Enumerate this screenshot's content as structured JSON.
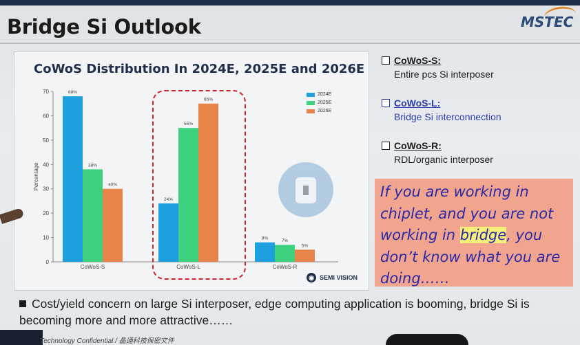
{
  "slide": {
    "title": "Bridge Si Outlook",
    "logo_text": "MSTEC",
    "footer": "Technology Confidential / 晶通科技保密文件",
    "bullet": "Cost/yield concern on large Si interposer, edge computing application is booming, bridge Si is becoming more and more attractive……"
  },
  "options": [
    {
      "label": "CoWoS-S:",
      "description": "Entire pcs Si interposer",
      "color": "#1b1b1b"
    },
    {
      "label": "CoWoS-L:",
      "description": "Bridge Si interconnection",
      "color": "#2a3ea8"
    },
    {
      "label": "CoWoS-R:",
      "description": "RDL/organic interposer",
      "color": "#1b1b1b"
    }
  ],
  "quote": {
    "before": "If you are working in chiplet, and you are not working in ",
    "highlight": "bridge",
    "after": ", you don’t know what you are doing……"
  },
  "chart_data": {
    "type": "bar",
    "title": "CoWoS Distribution In 2024E, 2025E and 2026E",
    "ylabel": "Percentage",
    "xlabel": "",
    "ylim": [
      0,
      70
    ],
    "yticks": [
      0,
      10,
      20,
      30,
      40,
      50,
      60,
      70
    ],
    "categories": [
      "CoWoS-S",
      "CoWoS-L",
      "CoWoS-R"
    ],
    "series": [
      {
        "name": "2024E",
        "color": "#1ea0e0",
        "values": [
          68,
          24,
          8
        ]
      },
      {
        "name": "2025E",
        "color": "#3ed17f",
        "values": [
          38,
          55,
          7
        ]
      },
      {
        "name": "2026E",
        "color": "#e8834a",
        "values": [
          30,
          65,
          5
        ]
      }
    ],
    "legend_position": "top-right",
    "highlighted_category": "CoWoS-L",
    "brand": "SEMI VISION"
  }
}
